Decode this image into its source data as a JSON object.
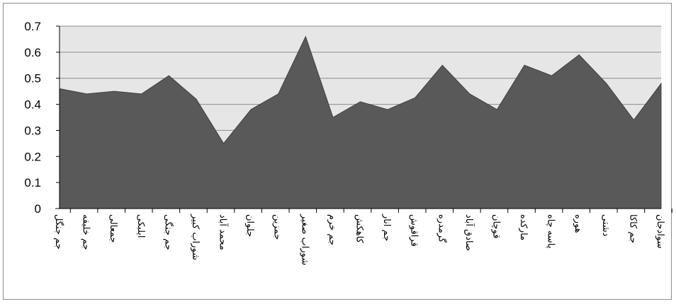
{
  "chart_data": {
    "type": "area",
    "title": "",
    "xlabel": "",
    "ylabel": "",
    "ylim": [
      0,
      0.7
    ],
    "yticks": [
      "0",
      "0.1",
      "0.2",
      "0.3",
      "0.4",
      "0.5",
      "0.6",
      "0.7"
    ],
    "grid": true,
    "legend": "none",
    "colors": {
      "area": "#595959",
      "plot_bg": "#e6e6e6",
      "grid": "#8c8c8c",
      "axis": "#000000"
    },
    "categories": [
      "جم جنگل",
      "جم خلیفه",
      "جمعالی",
      "ایلبکی",
      "جم جنگی",
      "شوراب کبیر",
      "محمد آباد",
      "جلوان",
      "جمزین",
      "شوراب صغیر",
      "جم خرم",
      "کاهکش",
      "جم انار",
      "قراقوش",
      "گرمدره",
      "صادق آباد",
      "قوچان",
      "مارکده",
      "پاسه چاه",
      "هوره",
      "دشتی",
      "جم کاکا",
      "سوادجان"
    ],
    "values": [
      0.46,
      0.44,
      0.45,
      0.44,
      0.51,
      0.42,
      0.25,
      0.38,
      0.44,
      0.66,
      0.35,
      0.41,
      0.38,
      0.425,
      0.55,
      0.44,
      0.38,
      0.55,
      0.51,
      0.59,
      0.48,
      0.34,
      0.48
    ]
  }
}
